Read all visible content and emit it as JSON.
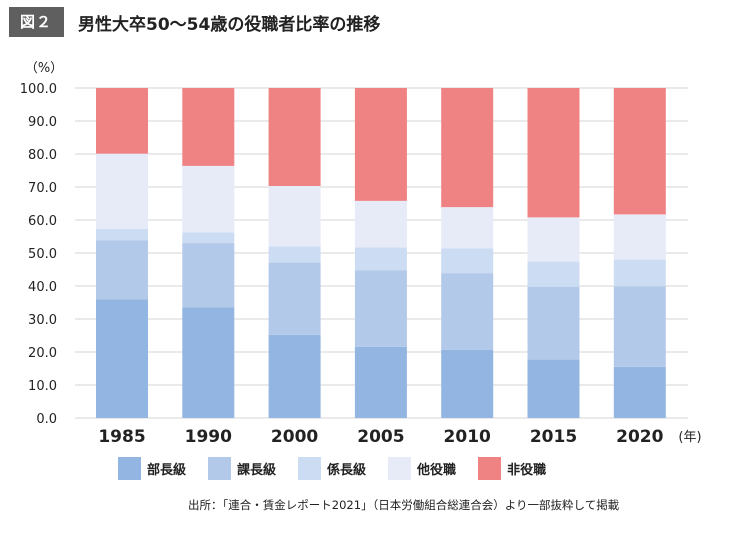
{
  "header": {
    "figure_label": "図２",
    "title": "男性大卒50～54歳の役職者比率の推移"
  },
  "chart_data": {
    "type": "bar",
    "stacked": true,
    "y_unit_label": "（%）",
    "x_unit_label": "(年)",
    "categories": [
      "1985",
      "1990",
      "2000",
      "2005",
      "2010",
      "2015",
      "2020"
    ],
    "yticks": [
      "0.0",
      "10.0",
      "20.0",
      "30.0",
      "40.0",
      "50.0",
      "60.0",
      "70.0",
      "80.0",
      "90.0",
      "100.0"
    ],
    "ylim": [
      0,
      100
    ],
    "grid": true,
    "legend_position": "bottom",
    "series": [
      {
        "name": "部長級",
        "color": "#93b5e1",
        "values": [
          36.0,
          33.5,
          25.2,
          21.6,
          20.7,
          17.7,
          15.5
        ]
      },
      {
        "name": "課長級",
        "color": "#b3c9e9",
        "values": [
          17.9,
          19.5,
          21.9,
          23.1,
          23.2,
          22.1,
          24.4
        ]
      },
      {
        "name": "係長級",
        "color": "#ccdcf2",
        "values": [
          3.4,
          3.2,
          4.9,
          7.0,
          7.5,
          7.6,
          8.1
        ]
      },
      {
        "name": "他役職",
        "color": "#e7ebf7",
        "values": [
          22.8,
          20.2,
          18.3,
          14.1,
          12.5,
          13.4,
          13.7
        ]
      },
      {
        "name": "非役職",
        "color": "#ef8283",
        "values": [
          19.9,
          23.6,
          29.7,
          34.2,
          36.1,
          39.2,
          38.3
        ]
      }
    ]
  },
  "source": "出所：｢連合・賃金レポート2021｣（日本労働組合総連合会）より一部抜粋して掲載"
}
